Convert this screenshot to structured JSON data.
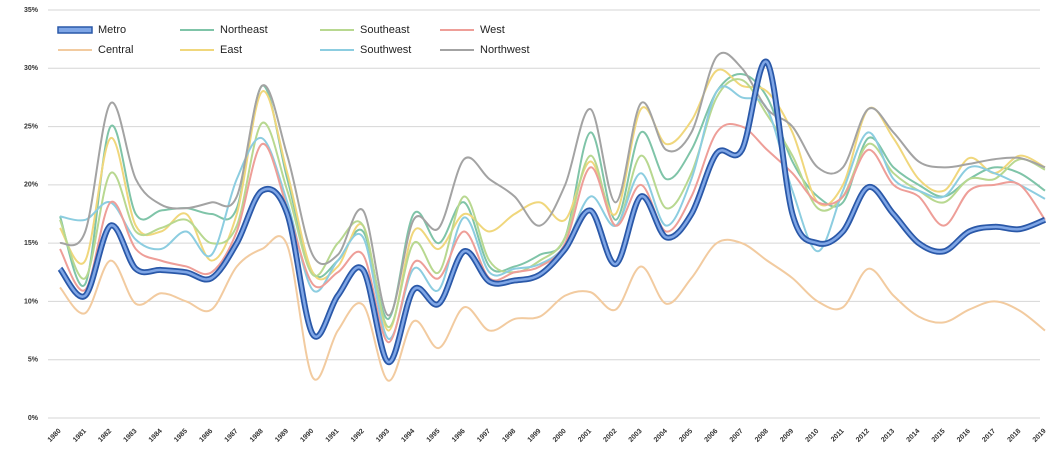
{
  "chart_data": {
    "type": "line",
    "categories": [
      "1980",
      "1981",
      "1982",
      "1983",
      "1984",
      "1985",
      "1986",
      "1987",
      "1988",
      "1989",
      "1990",
      "1991",
      "1992",
      "1993",
      "1994",
      "1995",
      "1996",
      "1997",
      "1998",
      "1999",
      "2000",
      "2001",
      "2002",
      "2003",
      "2004",
      "2005",
      "2006",
      "2007",
      "2008",
      "2009",
      "2010",
      "2011",
      "2012",
      "2013",
      "2014",
      "2015",
      "2016",
      "2017",
      "2018",
      "2019"
    ],
    "ylim": [
      0,
      35
    ],
    "yticks": [
      {
        "value": 0,
        "label": "0%"
      },
      {
        "value": 5,
        "label": "5%"
      },
      {
        "value": 10,
        "label": "10%"
      },
      {
        "value": 15,
        "label": "15%"
      },
      {
        "value": 20,
        "label": "20%"
      },
      {
        "value": 25,
        "label": "25%"
      },
      {
        "value": 30,
        "label": "30%"
      },
      {
        "value": 35,
        "label": "35%"
      }
    ],
    "grid": true,
    "legend": "top-left",
    "series": [
      {
        "name": "Central",
        "color": "#f2cba0",
        "values": [
          11.2,
          9,
          13.5,
          9.8,
          10.7,
          10,
          9.3,
          13,
          14.5,
          14.8,
          3.5,
          7.5,
          9.7,
          3.2,
          8.3,
          6,
          9.5,
          7.5,
          8.5,
          8.7,
          10.5,
          10.8,
          9.3,
          13,
          9.8,
          12,
          15,
          15,
          13.5,
          12,
          10,
          9.5,
          12.8,
          10.5,
          8.7,
          8.2,
          9.3,
          10,
          9.2,
          7.5
        ]
      },
      {
        "name": "Northeast",
        "color": "#7fc4a8",
        "values": [
          17.3,
          11.5,
          25,
          17.5,
          17.8,
          18,
          17.5,
          18,
          28.5,
          20.5,
          12.5,
          13.5,
          16,
          8.5,
          17.5,
          15,
          18.5,
          13,
          13,
          14,
          15.5,
          24.5,
          17,
          24.5,
          20.5,
          23,
          28,
          29.5,
          27.5,
          22,
          19,
          18.5,
          24,
          21.5,
          20,
          19,
          20.5,
          21.5,
          21,
          19.5
        ]
      },
      {
        "name": "East",
        "color": "#f0d77c",
        "values": [
          16.3,
          13.5,
          24,
          16.5,
          16,
          17.5,
          13.5,
          17.5,
          28,
          21,
          12.5,
          13,
          16.5,
          7.5,
          16,
          14.5,
          17.5,
          16,
          17.5,
          18.5,
          17,
          22,
          17.5,
          26.5,
          23.5,
          25.5,
          29.8,
          28.5,
          28,
          24.5,
          18.5,
          20,
          26.5,
          24,
          20.5,
          19.5,
          22.3,
          21,
          22.5,
          21.5
        ]
      },
      {
        "name": "Southeast",
        "color": "#b8d890",
        "values": [
          17,
          12,
          21,
          16,
          16.3,
          17,
          15,
          16.5,
          25.3,
          19.5,
          12.3,
          15,
          16.5,
          7.8,
          15,
          12.5,
          19,
          13.5,
          12.5,
          13.5,
          15.5,
          22.5,
          16.5,
          22.5,
          18,
          21,
          27.5,
          29,
          26,
          22.5,
          18,
          19,
          23.5,
          21,
          19.5,
          18.5,
          20.5,
          20.5,
          22.2,
          21.3
        ]
      },
      {
        "name": "Southwest",
        "color": "#8ccde0",
        "values": [
          17.3,
          17,
          18.5,
          15.3,
          14.5,
          16,
          14,
          20.5,
          24,
          18.5,
          11,
          13.5,
          15.5,
          6.8,
          12.8,
          11,
          17.2,
          12.5,
          12.8,
          13.2,
          14.8,
          19,
          16.5,
          21,
          16.5,
          20.5,
          28,
          27.5,
          26.5,
          19.5,
          14.3,
          19.5,
          24.5,
          20.5,
          19.5,
          19,
          21.5,
          21,
          20,
          18.8
        ]
      },
      {
        "name": "West",
        "color": "#ee9e98",
        "values": [
          14.5,
          11,
          18.5,
          14.5,
          13.5,
          13,
          12.5,
          16,
          23.5,
          18,
          11.5,
          12.5,
          14,
          6.5,
          13.3,
          12,
          16,
          12,
          12.5,
          13,
          15,
          21.5,
          16.5,
          20,
          16,
          19,
          24.5,
          25,
          23,
          21,
          18.5,
          19,
          23,
          20,
          19,
          16.5,
          19.5,
          20,
          20,
          17
        ]
      },
      {
        "name": "Northwest",
        "color": "#a3a3a3",
        "values": [
          15,
          16,
          27,
          20.5,
          18.3,
          18,
          18.5,
          19,
          28.5,
          22.5,
          14,
          14,
          17.8,
          8.8,
          17,
          16.3,
          22.2,
          20.5,
          19,
          16.5,
          20,
          26.5,
          18.5,
          27,
          23,
          24.5,
          31,
          30,
          26.5,
          25,
          21.5,
          21.5,
          26.5,
          24.5,
          22,
          21.5,
          21.8,
          22.2,
          22.3,
          21.5
        ]
      },
      {
        "name": "Metro",
        "color": "#3b6cc4",
        "values": [
          12.8,
          10.5,
          16.5,
          12.8,
          12.7,
          12.5,
          12,
          15,
          19.5,
          17.5,
          7.2,
          10.5,
          12.7,
          4.8,
          11,
          9.8,
          14.3,
          11.7,
          11.8,
          12.3,
          14.5,
          17.8,
          13.2,
          19,
          15.5,
          17.5,
          22.7,
          23,
          30.5,
          17.5,
          15,
          16,
          19.8,
          17.5,
          15,
          14.3,
          16,
          16.4,
          16.2,
          17
        ]
      }
    ]
  }
}
